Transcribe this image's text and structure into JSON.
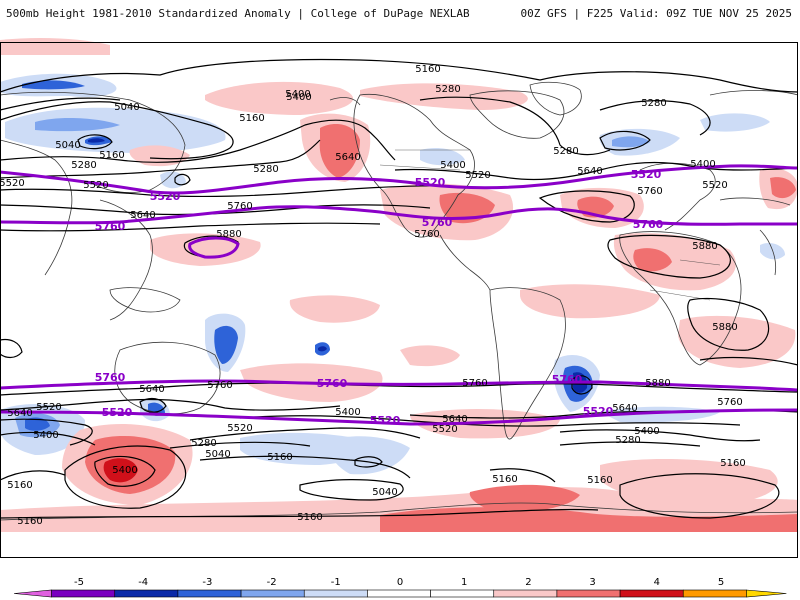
{
  "header": {
    "title": "500mb Height 1981-2010 Standardized Anomaly | College of DuPage NEXLAB",
    "run": "00Z GFS | F225 Valid: 09Z TUE NOV 25 2025"
  },
  "colors": {
    "land_line": "#3a3a3a",
    "contour": "#000000",
    "highlight_contour": "#8a00c8",
    "frame": "#000000"
  },
  "contour_labels": [
    {
      "text": "5160"
    },
    {
      "text": "5280"
    },
    {
      "text": "5280"
    },
    {
      "text": "5040"
    },
    {
      "text": "5400"
    },
    {
      "text": "5160"
    },
    {
      "text": "5040"
    },
    {
      "text": "5160"
    },
    {
      "text": "5280"
    },
    {
      "text": "5400"
    },
    {
      "text": "5520"
    },
    {
      "text": "5640"
    },
    {
      "text": "5280"
    },
    {
      "text": "5520"
    },
    {
      "text": "5760"
    },
    {
      "text": "5640"
    },
    {
      "text": "5880"
    },
    {
      "text": "5400"
    },
    {
      "text": "5520"
    },
    {
      "text": "5760"
    },
    {
      "text": "5280"
    },
    {
      "text": "5640"
    },
    {
      "text": "5400"
    },
    {
      "text": "5520"
    },
    {
      "text": "5760"
    },
    {
      "text": "5880"
    },
    {
      "text": "5880"
    },
    {
      "text": "5760"
    },
    {
      "text": "5640"
    },
    {
      "text": "5760"
    },
    {
      "text": "5760"
    },
    {
      "text": "5880"
    },
    {
      "text": "5520"
    },
    {
      "text": "5280"
    },
    {
      "text": "5640"
    },
    {
      "text": "5400"
    },
    {
      "text": "5040"
    },
    {
      "text": "5160"
    },
    {
      "text": "5400"
    },
    {
      "text": "5160"
    },
    {
      "text": "5400"
    },
    {
      "text": "5640"
    },
    {
      "text": "5520"
    },
    {
      "text": "5040"
    },
    {
      "text": "5160"
    },
    {
      "text": "5160"
    },
    {
      "text": "5160"
    },
    {
      "text": "5640"
    },
    {
      "text": "5520"
    },
    {
      "text": "5400"
    },
    {
      "text": "5280"
    },
    {
      "text": "5160"
    },
    {
      "text": "5160"
    }
  ],
  "highlight_labels": [
    {
      "text": "5520"
    },
    {
      "text": "5520"
    },
    {
      "text": "5520"
    },
    {
      "text": "5760"
    },
    {
      "text": "5760"
    },
    {
      "text": "5760"
    },
    {
      "text": "5760"
    },
    {
      "text": "5760"
    },
    {
      "text": "5760"
    },
    {
      "text": "5520"
    },
    {
      "text": "5520"
    },
    {
      "text": "5520"
    }
  ],
  "colorbar": {
    "ticks": [
      "-5",
      "-4",
      "-3",
      "-2",
      "-1",
      "0",
      "1",
      "2",
      "3",
      "4",
      "5"
    ],
    "segments": [
      {
        "color": "#7a00c0"
      },
      {
        "color": "#0a2aa8"
      },
      {
        "color": "#2e63d8"
      },
      {
        "color": "#7fa6ee"
      },
      {
        "color": "#cddcf6"
      },
      {
        "color": "#ffffff"
      },
      {
        "color": "#ffffff"
      },
      {
        "color": "#fac8c8"
      },
      {
        "color": "#f07070"
      },
      {
        "color": "#d0101a"
      },
      {
        "color": "#ff9a00"
      }
    ],
    "low_end_color": "#e060e0",
    "high_end_color": "#ffd800"
  }
}
